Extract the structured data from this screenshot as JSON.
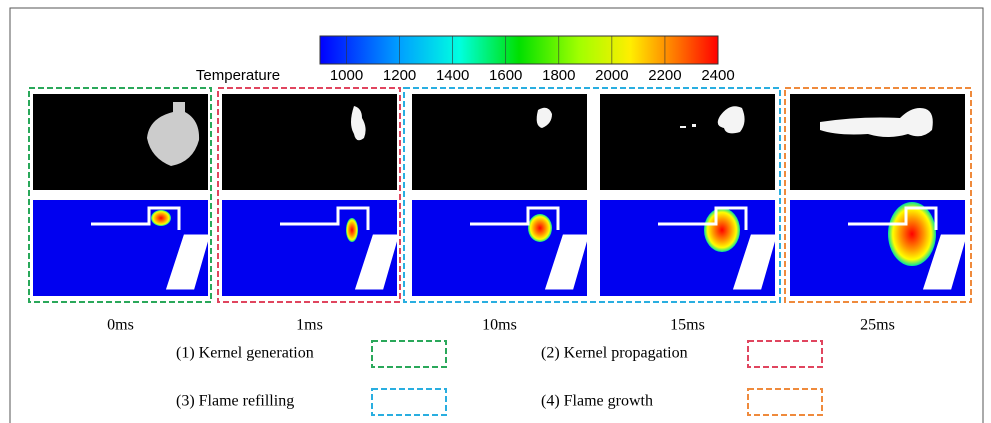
{
  "colorbar": {
    "title": "Temperature",
    "lim": [
      900,
      2400
    ],
    "ticks": [
      1000,
      1200,
      1400,
      1600,
      1800,
      2000,
      2200,
      2400
    ]
  },
  "panels": [
    {
      "time": "0ms"
    },
    {
      "time": "1ms"
    },
    {
      "time": "10ms"
    },
    {
      "time": "15ms"
    },
    {
      "time": "25ms"
    }
  ],
  "legend": [
    {
      "label": "(1) Kernel generation",
      "color": "#2aa85a"
    },
    {
      "label": "(2) Kernel propagation",
      "color": "#e0455e"
    },
    {
      "label": "(3) Flame refilling",
      "color": "#29aee0"
    },
    {
      "label": "(4) Flame growth",
      "color": "#ef8a3c"
    }
  ]
}
